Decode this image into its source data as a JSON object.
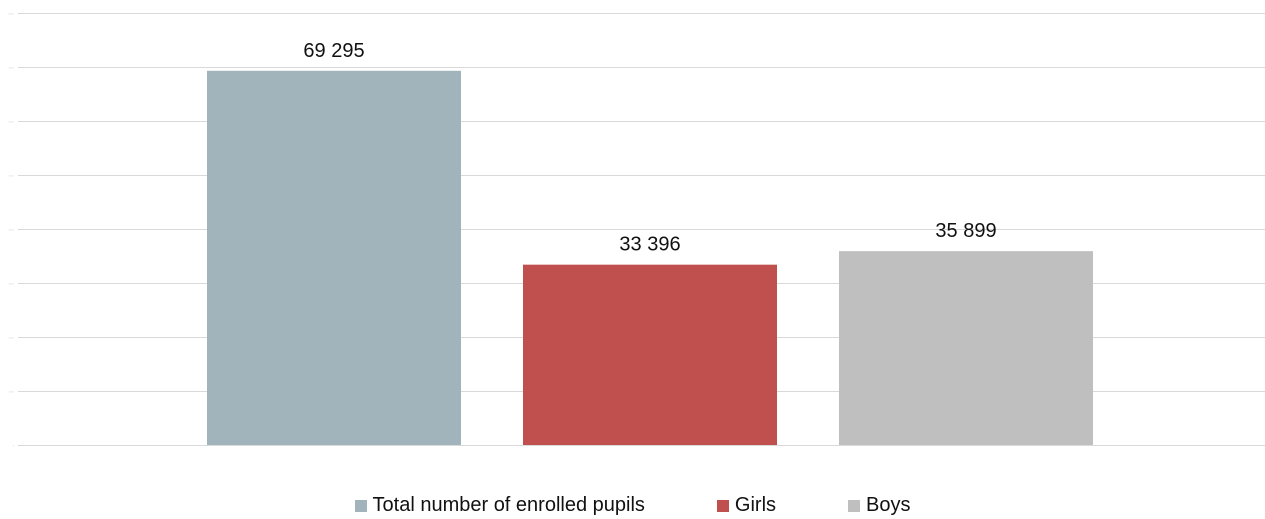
{
  "chart_data": {
    "type": "bar",
    "title": "",
    "xlabel": "",
    "ylabel": "",
    "ylim": [
      0,
      80000
    ],
    "y_ticks": [
      0,
      10000,
      20000,
      30000,
      40000,
      50000,
      60000,
      70000,
      80000
    ],
    "grid": true,
    "legend_position": "bottom",
    "categories": [
      "Total number of enrolled pupils",
      "Girls",
      "Boys"
    ],
    "values": [
      69295,
      33396,
      35899
    ],
    "value_labels": [
      "69 295",
      "33 396",
      "35 899"
    ],
    "colors": [
      "#a2b4bb",
      "#c0504d",
      "#bfbfbf"
    ]
  }
}
